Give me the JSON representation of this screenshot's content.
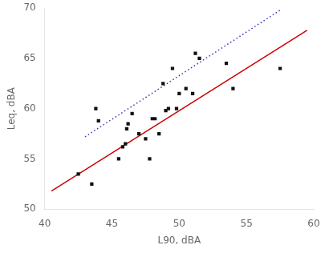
{
  "chart_data": {
    "type": "scatter",
    "xlabel": "L90, dBA",
    "ylabel": "Leq, dBA",
    "xlim": [
      40,
      60
    ],
    "ylim": [
      50,
      70
    ],
    "xticks": [
      40,
      45,
      50,
      55,
      60
    ],
    "yticks": [
      50,
      55,
      60,
      65,
      70
    ],
    "grid": false,
    "series": [
      {
        "type": "scatter",
        "marker": "square",
        "color": "#111111",
        "x": [
          42.5,
          43.5,
          43.8,
          44.0,
          45.5,
          45.8,
          46.0,
          46.1,
          46.2,
          46.5,
          47.0,
          47.5,
          47.8,
          48.0,
          48.2,
          48.5,
          48.8,
          49.0,
          49.2,
          49.5,
          49.8,
          50.0,
          50.5,
          51.0,
          51.2,
          51.5,
          53.5,
          54.0,
          57.5
        ],
        "values": [
          53.5,
          52.5,
          60.0,
          58.8,
          55.0,
          56.2,
          56.5,
          58.0,
          58.5,
          59.5,
          57.5,
          57.0,
          55.0,
          59.0,
          59.0,
          57.5,
          62.5,
          59.8,
          60.0,
          64.0,
          60.0,
          61.5,
          62.0,
          61.5,
          65.5,
          65.0,
          64.5,
          62.0,
          64.0
        ]
      },
      {
        "type": "line",
        "line_style": "solid",
        "color": "#cc0000",
        "x": [
          40.5,
          59.5
        ],
        "values": [
          51.8,
          67.8
        ]
      },
      {
        "type": "line",
        "line_style": "dotted",
        "color": "#3333bb",
        "x": [
          43.0,
          57.5
        ],
        "values": [
          57.2,
          69.8
        ]
      }
    ]
  }
}
